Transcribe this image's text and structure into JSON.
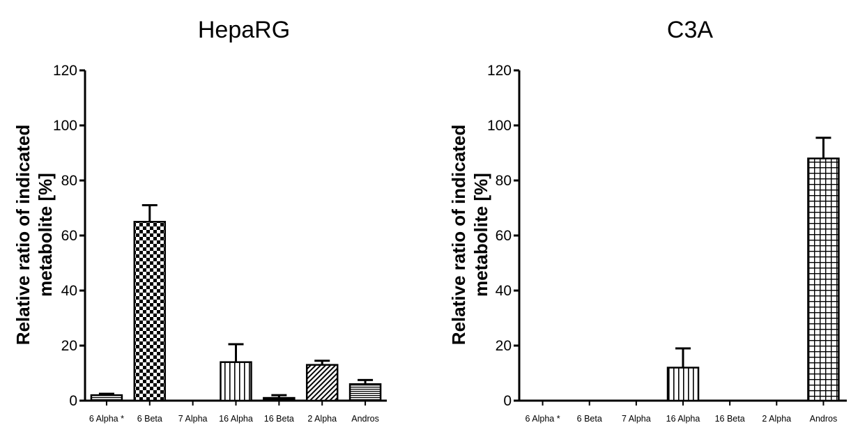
{
  "chart_data": [
    {
      "type": "bar",
      "title": "HepaRG",
      "xlabel": "",
      "ylabel": "Relative ratio of indicated metabolite [%]",
      "ylabel_lines": [
        "Relative ratio of indicated",
        "metabolite [%]"
      ],
      "ylim": [
        0,
        120
      ],
      "yticks": [
        0,
        20,
        40,
        60,
        80,
        100,
        120
      ],
      "categories": [
        "6 Alpha *",
        "6 Beta",
        "7 Alpha",
        "16 Alpha",
        "16 Beta",
        "2 Alpha",
        "Andros"
      ],
      "values": [
        2,
        65,
        0,
        14,
        1,
        13,
        6
      ],
      "errors": [
        0.5,
        6,
        0,
        6.5,
        1,
        1.5,
        1.5
      ],
      "patterns": [
        "horizontal-lines",
        "checker",
        "none",
        "vertical-lines",
        "solid-dark",
        "diagonal-hatch",
        "horizontal-lines"
      ]
    },
    {
      "type": "bar",
      "title": "C3A",
      "xlabel": "",
      "ylabel": "Relative ratio of indicated metabolite [%]",
      "ylabel_lines": [
        "Relative ratio of indicated",
        "metabolite [%]"
      ],
      "ylim": [
        0,
        120
      ],
      "yticks": [
        0,
        20,
        40,
        60,
        80,
        100,
        120
      ],
      "categories": [
        "6 Alpha *",
        "6 Beta",
        "7 Alpha",
        "16 Alpha",
        "16 Beta",
        "2 Alpha",
        "Andros"
      ],
      "values": [
        0,
        0,
        0,
        12,
        0,
        0,
        88
      ],
      "errors": [
        0,
        0,
        0,
        7,
        0,
        0,
        7.5
      ],
      "patterns": [
        "none",
        "none",
        "none",
        "vertical-lines",
        "none",
        "none",
        "grid"
      ]
    }
  ]
}
